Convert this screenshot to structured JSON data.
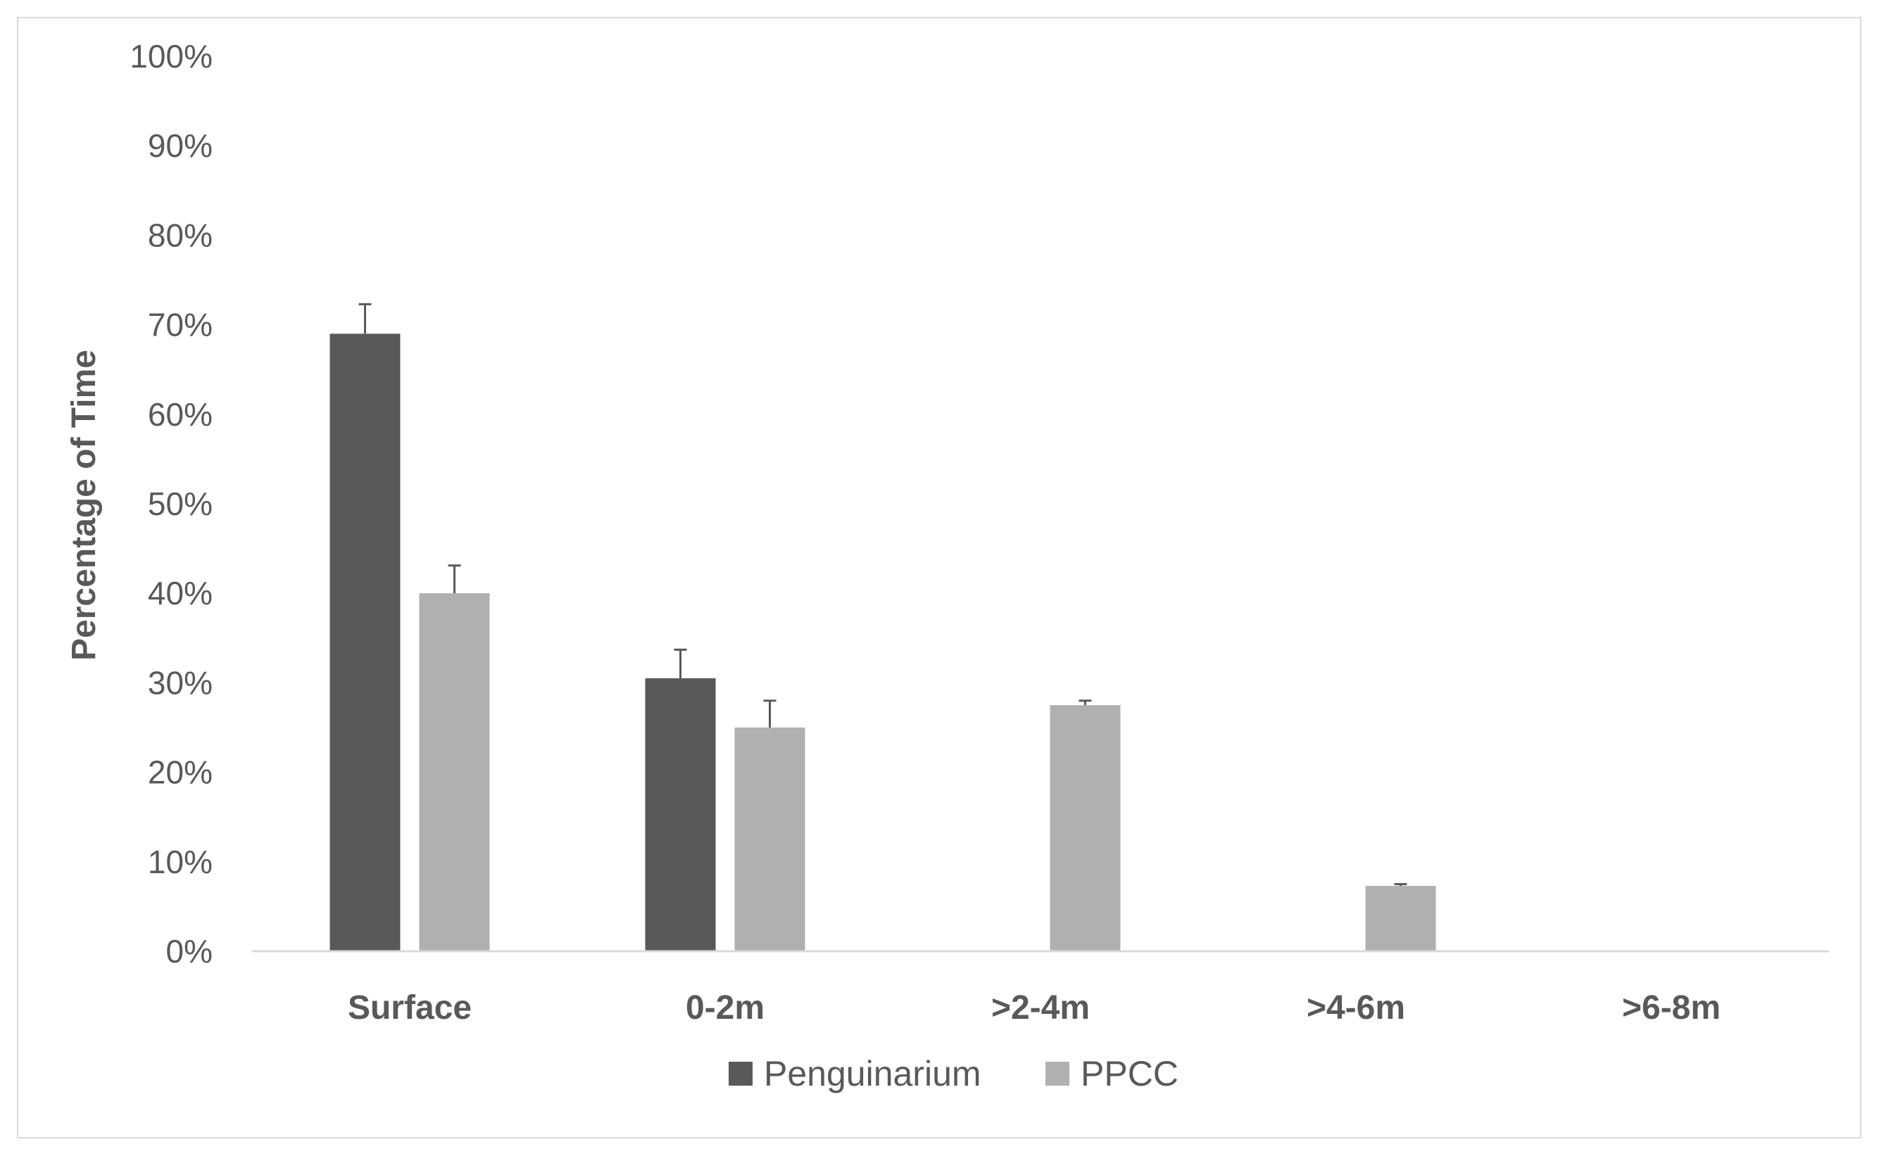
{
  "chart_data": {
    "type": "bar",
    "title": "",
    "xlabel": "",
    "ylabel": "Percentage of Time",
    "categories": [
      "Surface",
      "0-2m",
      ">2-4m",
      ">4-6m",
      ">6-8m"
    ],
    "ylim": [
      0,
      100
    ],
    "yticks": [
      "0%",
      "10%",
      "20%",
      "30%",
      "40%",
      "50%",
      "60%",
      "70%",
      "80%",
      "90%",
      "100%"
    ],
    "grid": false,
    "legend_position": "bottom",
    "series": [
      {
        "name": "Penguinarium",
        "color": "#595959",
        "values": [
          69,
          30.5,
          0,
          0,
          0
        ],
        "errors": [
          3.3,
          3.2,
          0,
          0,
          0
        ]
      },
      {
        "name": "PPCC",
        "color": "#b0b0b0",
        "values": [
          40,
          25,
          27.5,
          7.3,
          0.1
        ],
        "errors": [
          3.1,
          3.0,
          0.5,
          0.2,
          0
        ]
      }
    ]
  }
}
